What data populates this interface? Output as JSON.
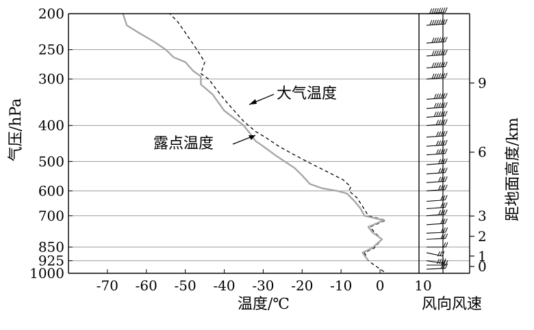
{
  "chart_data": {
    "type": "line",
    "ylabel": "气压/hPa",
    "xlabel": "温度/℃",
    "y2label": "距地面高度/km",
    "wind_label": "风向风速",
    "wind_tick_label": "10",
    "pressure_ticks": [
      200,
      250,
      300,
      400,
      500,
      600,
      700,
      850,
      925,
      1000
    ],
    "temperature_ticks": [
      -70,
      -60,
      -50,
      -40,
      -30,
      -20,
      -10,
      0
    ],
    "height_ticks_km": [
      0,
      1,
      2,
      3,
      6,
      9
    ],
    "ylim": [
      1000,
      200
    ],
    "xlim": [
      -80,
      10
    ],
    "grid": true,
    "series": [
      {
        "name": "大气温度",
        "style": "dashed",
        "color": "#000000",
        "points": [
          [
            1.0,
            990
          ],
          [
            -1.5,
            950
          ],
          [
            -3,
            925
          ],
          [
            -4,
            880
          ],
          [
            -1.5,
            855
          ],
          [
            0.5,
            810
          ],
          [
            -1.5,
            775
          ],
          [
            -2.5,
            750
          ],
          [
            1.5,
            720
          ],
          [
            -3,
            700
          ],
          [
            -4.5,
            660
          ],
          [
            -6,
            625
          ],
          [
            -8,
            600
          ],
          [
            -7.5,
            585
          ],
          [
            -9.5,
            560
          ],
          [
            -14,
            530
          ],
          [
            -18,
            505
          ],
          [
            -22,
            480
          ],
          [
            -26,
            455
          ],
          [
            -29.5,
            430
          ],
          [
            -32,
            415
          ],
          [
            -35,
            390
          ],
          [
            -39,
            350
          ],
          [
            -42,
            320
          ],
          [
            -44,
            300
          ],
          [
            -46,
            290
          ],
          [
            -45,
            270
          ],
          [
            -47,
            250
          ],
          [
            -50,
            225
          ],
          [
            -52,
            210
          ],
          [
            -54,
            200
          ]
        ]
      },
      {
        "name": "露点温度",
        "style": "solid",
        "color": "#a6a6a6",
        "points": [
          [
            -3,
            925
          ],
          [
            -4.5,
            880
          ],
          [
            -2,
            855
          ],
          [
            0.5,
            810
          ],
          [
            -2,
            775
          ],
          [
            -3,
            750
          ],
          [
            1,
            720
          ],
          [
            -4,
            700
          ],
          [
            -5,
            670
          ],
          [
            -6.5,
            640
          ],
          [
            -8.5,
            610
          ],
          [
            -11,
            600
          ],
          [
            -15,
            590
          ],
          [
            -18,
            575
          ],
          [
            -20,
            545
          ],
          [
            -22,
            520
          ],
          [
            -24.5,
            500
          ],
          [
            -27,
            480
          ],
          [
            -30,
            455
          ],
          [
            -32,
            440
          ],
          [
            -33,
            425
          ],
          [
            -35,
            400
          ],
          [
            -40,
            365
          ],
          [
            -43,
            330
          ],
          [
            -46,
            310
          ],
          [
            -46,
            295
          ],
          [
            -48,
            285
          ],
          [
            -50,
            270
          ],
          [
            -53,
            262
          ],
          [
            -55,
            250
          ],
          [
            -58,
            238
          ],
          [
            -62,
            225
          ],
          [
            -65,
            215
          ],
          [
            -66,
            200
          ]
        ]
      }
    ],
    "wind_barbs": [
      {
        "pressure": 1000,
        "dir_deg": 270,
        "speed_ms": 10
      },
      {
        "pressure": 975,
        "dir_deg": 260,
        "speed_ms": 12
      },
      {
        "pressure": 925,
        "dir_deg": 300,
        "speed_ms": 14
      },
      {
        "pressure": 880,
        "dir_deg": 310,
        "speed_ms": 12
      },
      {
        "pressure": 850,
        "dir_deg": 270,
        "speed_ms": 6
      },
      {
        "pressure": 810,
        "dir_deg": 260,
        "speed_ms": 10
      },
      {
        "pressure": 780,
        "dir_deg": 260,
        "speed_ms": 12
      },
      {
        "pressure": 740,
        "dir_deg": 255,
        "speed_ms": 12
      },
      {
        "pressure": 700,
        "dir_deg": 255,
        "speed_ms": 14
      },
      {
        "pressure": 670,
        "dir_deg": 255,
        "speed_ms": 12
      },
      {
        "pressure": 640,
        "dir_deg": 255,
        "speed_ms": 12
      },
      {
        "pressure": 600,
        "dir_deg": 255,
        "speed_ms": 14
      },
      {
        "pressure": 570,
        "dir_deg": 255,
        "speed_ms": 14
      },
      {
        "pressure": 540,
        "dir_deg": 255,
        "speed_ms": 16
      },
      {
        "pressure": 510,
        "dir_deg": 255,
        "speed_ms": 16
      },
      {
        "pressure": 480,
        "dir_deg": 255,
        "speed_ms": 18
      },
      {
        "pressure": 455,
        "dir_deg": 255,
        "speed_ms": 18
      },
      {
        "pressure": 430,
        "dir_deg": 255,
        "speed_ms": 20
      },
      {
        "pressure": 400,
        "dir_deg": 255,
        "speed_ms": 20
      },
      {
        "pressure": 380,
        "dir_deg": 255,
        "speed_ms": 22
      },
      {
        "pressure": 360,
        "dir_deg": 255,
        "speed_ms": 22
      },
      {
        "pressure": 340,
        "dir_deg": 255,
        "speed_ms": 24
      },
      {
        "pressure": 300,
        "dir_deg": 255,
        "speed_ms": 26
      },
      {
        "pressure": 280,
        "dir_deg": 255,
        "speed_ms": 26
      },
      {
        "pressure": 260,
        "dir_deg": 255,
        "speed_ms": 28
      },
      {
        "pressure": 240,
        "dir_deg": 255,
        "speed_ms": 28
      },
      {
        "pressure": 215,
        "dir_deg": 255,
        "speed_ms": 30
      },
      {
        "pressure": 200,
        "dir_deg": 255,
        "speed_ms": 30
      }
    ]
  }
}
